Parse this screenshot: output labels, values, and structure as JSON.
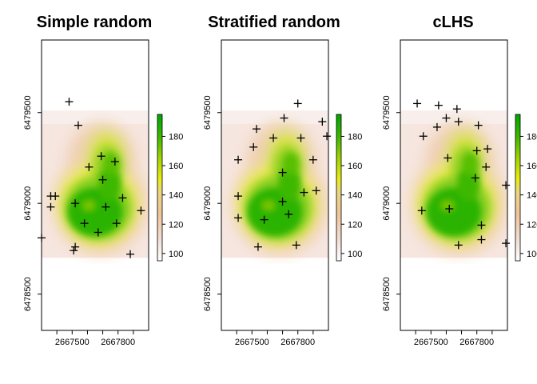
{
  "chart_data": [
    {
      "type": "scatter",
      "title": "Simple random",
      "xlabel": "",
      "ylabel": "",
      "xlim": [
        2667300,
        2668000
      ],
      "ylim": [
        6478300,
        6479900
      ],
      "x_ticks": [
        "2667500",
        "2667800"
      ],
      "y_ticks": [
        "6478500",
        "6479000",
        "6479500"
      ],
      "raster_extent": {
        "x": [
          2667300,
          2668000
        ],
        "y": [
          6478700,
          6479570
        ]
      },
      "colorbar": {
        "min": 95,
        "max": 195,
        "ticks": [
          "100",
          "120",
          "140",
          "160",
          "180"
        ]
      },
      "grid": false,
      "points": [
        [
          2667480,
          6479560
        ],
        [
          2667540,
          6479430
        ],
        [
          2667610,
          6479200
        ],
        [
          2667360,
          6479040
        ],
        [
          2667390,
          6479040
        ],
        [
          2667360,
          6478980
        ],
        [
          2667520,
          6479000
        ],
        [
          2667580,
          6478890
        ],
        [
          2667670,
          6478840
        ],
        [
          2667690,
          6479260
        ],
        [
          2667780,
          6479230
        ],
        [
          2667700,
          6479130
        ],
        [
          2667720,
          6478980
        ],
        [
          2667790,
          6478890
        ],
        [
          2667830,
          6479030
        ],
        [
          2667520,
          6478760
        ],
        [
          2667510,
          6478740
        ],
        [
          2667300,
          6478810
        ],
        [
          2667880,
          6478720
        ],
        [
          2667950,
          6478960
        ]
      ]
    },
    {
      "type": "scatter",
      "title": "Stratified random",
      "xlabel": "",
      "ylabel": "",
      "xlim": [
        2667300,
        2668000
      ],
      "ylim": [
        6478300,
        6479900
      ],
      "x_ticks": [
        "2667500",
        "2667800"
      ],
      "y_ticks": [
        "6478500",
        "6479000",
        "6479500"
      ],
      "raster_extent": {
        "x": [
          2667300,
          2668000
        ],
        "y": [
          6478700,
          6479570
        ]
      },
      "colorbar": {
        "min": 95,
        "max": 195,
        "ticks": [
          "100",
          "120",
          "140",
          "160",
          "180"
        ]
      },
      "grid": false,
      "points": [
        [
          2667800,
          6479550
        ],
        [
          2667710,
          6479470
        ],
        [
          2667960,
          6479450
        ],
        [
          2667530,
          6479410
        ],
        [
          2667640,
          6479360
        ],
        [
          2667820,
          6479360
        ],
        [
          2667990,
          6479370
        ],
        [
          2667510,
          6479310
        ],
        [
          2667410,
          6479240
        ],
        [
          2667900,
          6479240
        ],
        [
          2667700,
          6479170
        ],
        [
          2667410,
          6479040
        ],
        [
          2667840,
          6479060
        ],
        [
          2667920,
          6479070
        ],
        [
          2667700,
          6479010
        ],
        [
          2667740,
          6478940
        ],
        [
          2667410,
          6478920
        ],
        [
          2667580,
          6478910
        ],
        [
          2667540,
          6478760
        ],
        [
          2667790,
          6478770
        ]
      ]
    },
    {
      "type": "scatter",
      "title": "cLHS",
      "xlabel": "",
      "ylabel": "",
      "xlim": [
        2667300,
        2668000
      ],
      "ylim": [
        6478300,
        6479900
      ],
      "x_ticks": [
        "2667500",
        "2667800"
      ],
      "y_ticks": [
        "6478500",
        "6479000",
        "6479500"
      ],
      "raster_extent": {
        "x": [
          2667300,
          2668000
        ],
        "y": [
          6478700,
          6479570
        ]
      },
      "colorbar": {
        "min": 95,
        "max": 195,
        "ticks": [
          "100",
          "120",
          "140",
          "160",
          "180"
        ]
      },
      "grid": false,
      "points": [
        [
          2667410,
          6479550
        ],
        [
          2667550,
          6479540
        ],
        [
          2667670,
          6479520
        ],
        [
          2667600,
          6479470
        ],
        [
          2667680,
          6479450
        ],
        [
          2667540,
          6479420
        ],
        [
          2667810,
          6479430
        ],
        [
          2667450,
          6479370
        ],
        [
          2667800,
          6479290
        ],
        [
          2667870,
          6479300
        ],
        [
          2667610,
          6479250
        ],
        [
          2667860,
          6479200
        ],
        [
          2667790,
          6479140
        ],
        [
          2667990,
          6479100
        ],
        [
          2667620,
          6478970
        ],
        [
          2667440,
          6478960
        ],
        [
          2667830,
          6478880
        ],
        [
          2667830,
          6478800
        ],
        [
          2667680,
          6478770
        ],
        [
          2667990,
          6478780
        ]
      ]
    }
  ]
}
